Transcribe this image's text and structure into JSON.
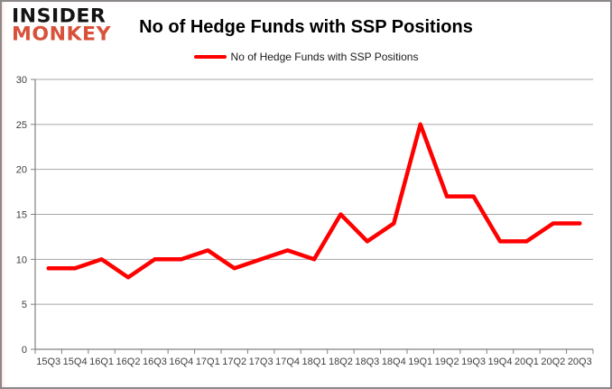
{
  "logo": {
    "line1": "INSIDER",
    "line2": "MONKEY"
  },
  "header": {
    "title": "No of Hedge Funds with SSP Positions"
  },
  "legend": {
    "label": "No of Hedge Funds with SSP Positions"
  },
  "colors": {
    "series_line": "#ff0000",
    "gridline": "#a6a6a6",
    "axis": "#808080",
    "tick_label": "#404040",
    "title_text": "#000000",
    "logo_primary": "#141414",
    "logo_accent": "#d8523b",
    "frame_border": "#8a8a8a",
    "frame_glow": "#ff2a2a",
    "background": "#ffffff"
  },
  "chart_data": {
    "type": "line",
    "title": "No of Hedge Funds with SSP Positions",
    "categories": [
      "15Q3",
      "15Q4",
      "16Q1",
      "16Q2",
      "16Q3",
      "16Q4",
      "17Q1",
      "17Q2",
      "17Q3",
      "17Q4",
      "18Q1",
      "18Q2",
      "18Q3",
      "18Q4",
      "19Q1",
      "19Q2",
      "19Q3",
      "19Q4",
      "20Q1",
      "20Q2",
      "20Q3"
    ],
    "series": [
      {
        "name": "No of Hedge Funds with SSP Positions",
        "color": "#ff0000",
        "values": [
          9,
          9,
          10,
          8,
          10,
          10,
          11,
          9,
          10,
          11,
          10,
          15,
          12,
          14,
          25,
          17,
          17,
          12,
          12,
          14,
          14
        ]
      }
    ],
    "xlabel": "",
    "ylabel": "",
    "ylim": [
      0,
      30
    ],
    "yticks": [
      0,
      5,
      10,
      15,
      20,
      25,
      30
    ],
    "grid": true,
    "legend_position": "top-center"
  }
}
